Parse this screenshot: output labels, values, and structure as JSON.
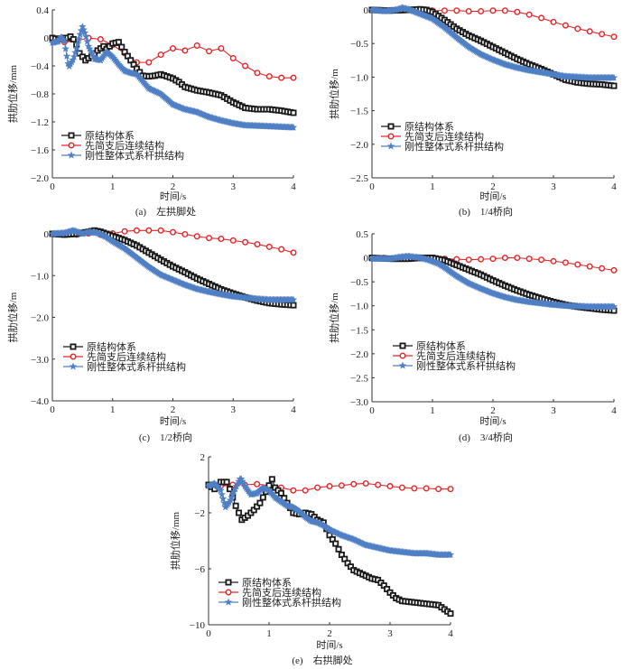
{
  "figure": {
    "legend_labels": [
      "原结构体系",
      "先简支后连续结构",
      "刚性整体式系杆拱结构"
    ],
    "series_colors": [
      "#1a1a1a",
      "#e8262a",
      "#4f7fc4"
    ],
    "series_markers": [
      "square",
      "circle",
      "star"
    ]
  },
  "chart_data": [
    {
      "id": "a",
      "type": "line",
      "caption": "(a)　左拱脚处",
      "xlabel": "时间/s",
      "ylabel": "拱肋位移/mm",
      "xlim": [
        0,
        4
      ],
      "ylim": [
        -2.0,
        0.4
      ],
      "xticks": [
        0,
        1,
        2,
        3,
        4
      ],
      "xtick_labels": [
        "0",
        "1",
        "2",
        "3",
        "4"
      ],
      "yticks": [
        0.4,
        0,
        -0.4,
        -0.8,
        -1.2,
        -1.6,
        -2.0
      ],
      "ytick_labels": [
        "0.4",
        "0",
        "−0.4",
        "−0.8",
        "−1.2",
        "−1.6",
        "−2.0"
      ],
      "legend": "lower-left",
      "grid": false,
      "series": [
        {
          "name": "原结构体系",
          "x": [
            0,
            0.1,
            0.2,
            0.25,
            0.3,
            0.35,
            0.4,
            0.45,
            0.55,
            0.65,
            0.75,
            0.85,
            0.9,
            1.0,
            1.1,
            1.2,
            1.3,
            1.4,
            1.5,
            1.6,
            1.7,
            1.8,
            1.9,
            2.0,
            2.1,
            2.2,
            2.4,
            2.6,
            2.8,
            3.0,
            3.2,
            3.4,
            3.6,
            3.8,
            4.0
          ],
          "y": [
            0,
            -0.02,
            0,
            0,
            0.02,
            -0.02,
            -0.1,
            -0.22,
            -0.32,
            -0.26,
            -0.18,
            -0.12,
            -0.16,
            -0.08,
            -0.06,
            -0.2,
            -0.32,
            -0.44,
            -0.54,
            -0.55,
            -0.54,
            -0.52,
            -0.55,
            -0.58,
            -0.63,
            -0.7,
            -0.75,
            -0.78,
            -0.82,
            -0.92,
            -1.0,
            -1.02,
            -1.02,
            -1.04,
            -1.07
          ]
        },
        {
          "name": "先简支后连续结构",
          "x": [
            0,
            0.2,
            0.4,
            0.6,
            0.8,
            1.0,
            1.2,
            1.4,
            1.6,
            1.8,
            2.0,
            2.2,
            2.4,
            2.6,
            2.8,
            3.0,
            3.2,
            3.4,
            3.6,
            3.8,
            4.0
          ],
          "y": [
            0,
            -0.06,
            -0.04,
            0,
            -0.02,
            -0.1,
            -0.22,
            -0.35,
            -0.35,
            -0.24,
            -0.15,
            -0.18,
            -0.11,
            -0.19,
            -0.15,
            -0.29,
            -0.4,
            -0.5,
            -0.55,
            -0.57,
            -0.57
          ]
        },
        {
          "name": "刚性整体式系杆拱结构",
          "x": [
            0,
            0.1,
            0.15,
            0.2,
            0.27,
            0.35,
            0.4,
            0.45,
            0.5,
            0.55,
            0.6,
            0.7,
            0.8,
            0.9,
            1.0,
            1.1,
            1.2,
            1.3,
            1.4,
            1.5,
            1.6,
            1.8,
            2.0,
            2.2,
            2.4,
            2.6,
            2.8,
            3.0,
            3.2,
            3.5,
            4.0
          ],
          "y": [
            -0.07,
            -0.05,
            0.02,
            -0.05,
            -0.42,
            -0.3,
            -0.15,
            0.02,
            0.16,
            0.05,
            -0.12,
            -0.3,
            -0.32,
            -0.2,
            -0.27,
            -0.38,
            -0.47,
            -0.5,
            -0.52,
            -0.62,
            -0.72,
            -0.8,
            -0.95,
            -1.02,
            -1.06,
            -1.13,
            -1.18,
            -1.22,
            -1.25,
            -1.26,
            -1.28
          ]
        }
      ]
    },
    {
      "id": "b",
      "type": "line",
      "caption": "(b)　1/4桥向",
      "xlabel": "时间/s",
      "ylabel": "拱肋位移/m",
      "xlim": [
        0,
        4
      ],
      "ylim": [
        -2.5,
        0
      ],
      "xticks": [
        0,
        1,
        2,
        3,
        4
      ],
      "xtick_labels": [
        "0",
        "1",
        "2",
        "3",
        "4"
      ],
      "yticks": [
        0,
        -0.5,
        -1.0,
        -1.5,
        -2.0,
        -2.5
      ],
      "ytick_labels": [
        "0",
        "−0.5",
        "−1.0",
        "−1.5",
        "−2.0",
        "−2.5"
      ],
      "legend": "lower-left",
      "grid": false,
      "series": [
        {
          "name": "原结构体系",
          "x": [
            0,
            0.3,
            0.6,
            0.8,
            0.9,
            1.0,
            1.2,
            1.4,
            1.6,
            1.8,
            2.0,
            2.2,
            2.4,
            2.6,
            2.8,
            3.0,
            3.2,
            3.4,
            3.6,
            3.8,
            4.0
          ],
          "y": [
            0,
            -0.01,
            0,
            0.01,
            0,
            -0.03,
            -0.15,
            -0.28,
            -0.38,
            -0.46,
            -0.55,
            -0.64,
            -0.73,
            -0.81,
            -0.88,
            -0.96,
            -1.04,
            -1.08,
            -1.1,
            -1.11,
            -1.13
          ]
        },
        {
          "name": "先简支后连续结构",
          "x": [
            0,
            0.2,
            0.4,
            0.6,
            0.8,
            1.0,
            1.2,
            1.4,
            1.6,
            1.8,
            2.0,
            2.2,
            2.4,
            2.6,
            2.8,
            3.0,
            3.2,
            3.4,
            3.6,
            3.8,
            4.0
          ],
          "y": [
            0,
            -0.01,
            0,
            0,
            -0.01,
            -0.01,
            -0.01,
            -0.01,
            -0.02,
            -0.02,
            -0.01,
            -0.01,
            -0.03,
            -0.07,
            -0.12,
            -0.18,
            -0.23,
            -0.28,
            -0.32,
            -0.36,
            -0.4
          ]
        },
        {
          "name": "刚性整体式系杆拱结构",
          "x": [
            0,
            0.2,
            0.4,
            0.5,
            0.6,
            0.8,
            1.0,
            1.2,
            1.4,
            1.6,
            1.8,
            2.0,
            2.2,
            2.4,
            2.6,
            2.8,
            3.0,
            3.2,
            3.4,
            3.6,
            3.8,
            4.0
          ],
          "y": [
            0,
            -0.02,
            0,
            0.03,
            0.01,
            -0.06,
            -0.13,
            -0.26,
            -0.41,
            -0.55,
            -0.66,
            -0.74,
            -0.81,
            -0.86,
            -0.9,
            -0.93,
            -0.96,
            -0.99,
            -1.0,
            -1.01,
            -1.01,
            -1.01
          ]
        }
      ]
    },
    {
      "id": "c",
      "type": "line",
      "caption": "(c)　1/2桥向",
      "xlabel": "时间/s",
      "ylabel": "拱肋位移/m",
      "xlim": [
        0,
        4
      ],
      "ylim": [
        -4.0,
        0
      ],
      "xticks": [
        0,
        1,
        2,
        3,
        4
      ],
      "xtick_labels": [
        "0",
        "1",
        "2",
        "3",
        "4"
      ],
      "yticks": [
        0,
        -1.0,
        -2.0,
        -3.0,
        -4.0
      ],
      "ytick_labels": [
        "0",
        "−1.0",
        "−2.0",
        "−3.0",
        "−4.0"
      ],
      "legend": "lower-left",
      "grid": false,
      "series": [
        {
          "name": "原结构体系",
          "x": [
            0,
            0.2,
            0.4,
            0.6,
            0.7,
            0.8,
            1.0,
            1.2,
            1.4,
            1.6,
            1.8,
            2.0,
            2.2,
            2.4,
            2.6,
            2.8,
            3.0,
            3.2,
            3.4,
            3.6,
            3.8,
            4.0
          ],
          "y": [
            0,
            -0.02,
            0,
            0.05,
            0.08,
            0.05,
            -0.05,
            -0.15,
            -0.28,
            -0.45,
            -0.62,
            -0.78,
            -0.92,
            -1.07,
            -1.2,
            -1.33,
            -1.43,
            -1.52,
            -1.6,
            -1.66,
            -1.69,
            -1.71
          ]
        },
        {
          "name": "先简支后连续结构",
          "x": [
            0,
            0.2,
            0.4,
            0.6,
            0.8,
            1.0,
            1.2,
            1.4,
            1.6,
            1.8,
            2.0,
            2.2,
            2.4,
            2.6,
            2.8,
            3.0,
            3.2,
            3.4,
            3.6,
            3.8,
            4.0
          ],
          "y": [
            0,
            -0.02,
            -0.02,
            0.01,
            -0.02,
            0.01,
            0.06,
            0.08,
            0.08,
            0.08,
            0.04,
            -0.01,
            -0.06,
            -0.1,
            -0.12,
            -0.16,
            -0.2,
            -0.25,
            -0.31,
            -0.37,
            -0.45
          ]
        },
        {
          "name": "刚性整体式系杆拱结构",
          "x": [
            0,
            0.2,
            0.35,
            0.5,
            0.6,
            0.75,
            0.9,
            1.0,
            1.2,
            1.4,
            1.6,
            1.8,
            2.0,
            2.2,
            2.4,
            2.6,
            2.8,
            3.0,
            3.2,
            3.4,
            3.6,
            3.8,
            4.0
          ],
          "y": [
            0,
            0.02,
            0.08,
            0,
            0.04,
            0.02,
            -0.08,
            -0.18,
            -0.35,
            -0.57,
            -0.79,
            -0.98,
            -1.1,
            -1.22,
            -1.32,
            -1.39,
            -1.45,
            -1.5,
            -1.53,
            -1.56,
            -1.58,
            -1.58,
            -1.58
          ]
        }
      ]
    },
    {
      "id": "d",
      "type": "line",
      "caption": "(d)　3/4桥向",
      "xlabel": "时间/s",
      "ylabel": "拱肋位移/m",
      "xlim": [
        0,
        4
      ],
      "ylim": [
        -3.0,
        0.5
      ],
      "xticks": [
        0,
        1,
        2,
        3,
        4
      ],
      "xtick_labels": [
        "0",
        "1",
        "2",
        "3",
        "4"
      ],
      "yticks": [
        0.5,
        0,
        -0.5,
        -1.0,
        -1.5,
        -2.0,
        -2.5,
        -3.0
      ],
      "ytick_labels": [
        "0.5",
        "0",
        "−0.5",
        "−1.0",
        "−1.5",
        "−2.0",
        "−2.5",
        "−3.0"
      ],
      "legend": "lower-left",
      "grid": false,
      "series": [
        {
          "name": "原结构体系",
          "x": [
            0,
            0.3,
            0.6,
            0.8,
            1.0,
            1.2,
            1.4,
            1.6,
            1.8,
            2.0,
            2.2,
            2.4,
            2.6,
            2.8,
            3.0,
            3.2,
            3.4,
            3.6,
            3.8,
            4.0
          ],
          "y": [
            0,
            -0.02,
            -0.02,
            0,
            0,
            -0.05,
            -0.15,
            -0.25,
            -0.35,
            -0.47,
            -0.58,
            -0.68,
            -0.77,
            -0.85,
            -0.92,
            -0.98,
            -1.02,
            -1.05,
            -1.08,
            -1.1
          ]
        },
        {
          "name": "先简支后连续结构",
          "x": [
            0,
            0.2,
            0.4,
            0.6,
            0.8,
            1.0,
            1.2,
            1.4,
            1.6,
            1.8,
            2.0,
            2.2,
            2.4,
            2.6,
            2.8,
            3.0,
            3.2,
            3.4,
            3.6,
            3.8,
            4.0
          ],
          "y": [
            0,
            0,
            -0.02,
            0,
            -0.01,
            0,
            -0.02,
            -0.03,
            -0.04,
            -0.03,
            -0.02,
            0,
            0,
            -0.02,
            -0.04,
            -0.07,
            -0.1,
            -0.14,
            -0.18,
            -0.22,
            -0.26
          ]
        },
        {
          "name": "刚性整体式系杆拱结构",
          "x": [
            0,
            0.3,
            0.5,
            0.6,
            0.8,
            0.95,
            1.1,
            1.2,
            1.4,
            1.6,
            1.8,
            2.0,
            2.2,
            2.4,
            2.6,
            2.8,
            3.0,
            3.2,
            3.4,
            3.6,
            3.8,
            4.0
          ],
          "y": [
            -0.02,
            -0.02,
            0.02,
            0.03,
            0,
            -0.05,
            -0.12,
            -0.2,
            -0.38,
            -0.53,
            -0.64,
            -0.74,
            -0.82,
            -0.88,
            -0.92,
            -0.95,
            -0.98,
            -1.0,
            -1.01,
            -1.02,
            -1.02,
            -1.02
          ]
        }
      ]
    },
    {
      "id": "e",
      "type": "line",
      "caption": "(e)　右拱脚处",
      "xlabel": "时间/s",
      "ylabel": "拱肋位移/mm",
      "xlim": [
        0,
        4
      ],
      "ylim": [
        -10,
        2
      ],
      "xticks": [
        0,
        1,
        2,
        3,
        4
      ],
      "xtick_labels": [
        "0",
        "1",
        "2",
        "3",
        "4"
      ],
      "yticks": [
        2,
        -2,
        -6,
        -10
      ],
      "ytick_labels": [
        "2",
        "−2",
        "−6",
        "−10"
      ],
      "legend": "lower-left",
      "grid": false,
      "series": [
        {
          "name": "原结构体系",
          "x": [
            0,
            0.1,
            0.2,
            0.25,
            0.3,
            0.35,
            0.45,
            0.55,
            0.65,
            0.75,
            0.85,
            0.95,
            1.05,
            1.1,
            1.2,
            1.3,
            1.4,
            1.5,
            1.6,
            1.7,
            1.8,
            1.9,
            2.0,
            2.1,
            2.2,
            2.3,
            2.4,
            2.5,
            2.6,
            2.7,
            2.8,
            2.9,
            3.0,
            3.1,
            3.2,
            3.4,
            3.6,
            3.8,
            3.9,
            4.0
          ],
          "y": [
            0,
            -0.3,
            0.2,
            0.2,
            0.2,
            -0.3,
            -1.5,
            -2.5,
            -2.2,
            -1.8,
            -1.3,
            -0.5,
            0.4,
            -0.2,
            -0.6,
            -1.3,
            -2.0,
            -2.1,
            -2.0,
            -2.1,
            -2.5,
            -2.7,
            -3.6,
            -4.2,
            -5.0,
            -5.6,
            -6.1,
            -6.3,
            -6.5,
            -6.7,
            -6.8,
            -7.2,
            -7.7,
            -8.1,
            -8.3,
            -8.4,
            -8.5,
            -8.6,
            -8.9,
            -9.2
          ]
        },
        {
          "name": "先简支后连续结构",
          "x": [
            0,
            0.2,
            0.4,
            0.6,
            0.8,
            1.0,
            1.2,
            1.4,
            1.6,
            1.8,
            2.0,
            2.2,
            2.4,
            2.6,
            2.8,
            3.0,
            3.2,
            3.4,
            3.6,
            3.8,
            4.0
          ],
          "y": [
            0,
            -0.1,
            0,
            0,
            0.05,
            -0.05,
            -0.2,
            -0.4,
            -0.4,
            -0.2,
            -0.1,
            -0.05,
            0.05,
            0.1,
            0,
            -0.1,
            -0.2,
            -0.25,
            -0.25,
            -0.3,
            -0.3
          ]
        },
        {
          "name": "刚性整体式系杆拱结构",
          "x": [
            0,
            0.1,
            0.2,
            0.28,
            0.35,
            0.45,
            0.53,
            0.6,
            0.7,
            0.8,
            0.9,
            1.0,
            1.1,
            1.2,
            1.3,
            1.4,
            1.5,
            1.6,
            1.7,
            1.8,
            1.9,
            2.0,
            2.2,
            2.4,
            2.6,
            2.8,
            3.0,
            3.2,
            3.4,
            3.6,
            3.8,
            4.0
          ],
          "y": [
            -0.1,
            0.1,
            -0.4,
            -1.6,
            -1.2,
            -0.2,
            0.5,
            -0.1,
            -0.7,
            -0.6,
            -0.2,
            -0.4,
            -0.9,
            -1.2,
            -1.5,
            -1.6,
            -1.9,
            -2.3,
            -2.6,
            -2.7,
            -2.9,
            -3.2,
            -3.6,
            -3.9,
            -4.3,
            -4.5,
            -4.7,
            -4.8,
            -4.9,
            -4.9,
            -5.0,
            -5.0
          ]
        }
      ]
    }
  ]
}
